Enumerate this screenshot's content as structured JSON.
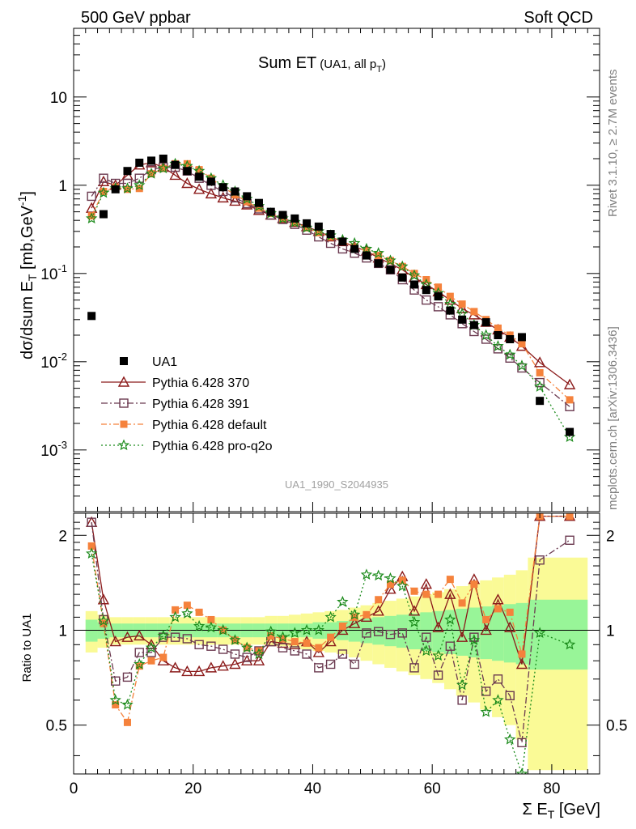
{
  "header": {
    "left": "500 GeV ppbar",
    "right": "Soft QCD"
  },
  "side": {
    "rivet": "Rivet 3.1.10, ≥ 2.7M events",
    "mcplots": "mcplots.cern.ch [arXiv:1306.3436]"
  },
  "chart_data": {
    "type": "scatter",
    "title_main": "Sum ET",
    "title_sub": "(UA1, all p",
    "title_sub_sub": "T",
    "title_sub_end": ")",
    "watermark": "UA1_1990_S2044935",
    "xlabel": "Σ E",
    "xlabel_sub": "T",
    "xlabel_unit": " [GeV]",
    "ylabel_main": "dσ/dsum E",
    "ylabel_sub": "T",
    "ylabel_unit": " [mb,GeV",
    "ylabel_sup": "-1",
    "ylabel_end": "]",
    "ratio_ylabel": "Ratio to UA1",
    "xlim": [
      0,
      88
    ],
    "ylim": [
      0.0002,
      60
    ],
    "yscale": "log",
    "ratio_ylim": [
      0.35,
      2.35
    ],
    "x_ticks": [
      "0",
      "20",
      "40",
      "60",
      "80"
    ],
    "y_ticks": [
      {
        "base": "10",
        "exp": "-3",
        "value": 0.001
      },
      {
        "base": "10",
        "exp": "-2",
        "value": 0.01
      },
      {
        "base": "10",
        "exp": "-1",
        "value": 0.1
      },
      {
        "base": "1",
        "exp": "",
        "value": 1
      },
      {
        "base": "10",
        "exp": "",
        "value": 10
      }
    ],
    "ratio_ticks": [
      {
        "label": "0.5",
        "value": 0.5
      },
      {
        "label": "1",
        "value": 1
      },
      {
        "label": "2",
        "value": 2
      }
    ],
    "legend_position": "bottom-left",
    "x": [
      3,
      5,
      7,
      9,
      11,
      13,
      15,
      17,
      19,
      21,
      23,
      25,
      27,
      29,
      31,
      33,
      35,
      37,
      39,
      41,
      43,
      45,
      47,
      49,
      51,
      53,
      55,
      57,
      59,
      61,
      63,
      65,
      67,
      69,
      71,
      73,
      75,
      78,
      83
    ],
    "data": {
      "name": "UA1",
      "values": [
        0.033,
        0.47,
        0.9,
        1.45,
        1.8,
        1.9,
        2.0,
        1.7,
        1.45,
        1.25,
        1.1,
        0.95,
        0.85,
        0.75,
        0.63,
        0.5,
        0.46,
        0.42,
        0.37,
        0.34,
        0.28,
        0.23,
        0.19,
        0.16,
        0.13,
        0.11,
        0.09,
        0.075,
        0.065,
        0.055,
        0.038,
        0.03,
        0.026,
        0.028,
        0.02,
        0.018,
        0.019,
        0.0036,
        0.0016
      ]
    },
    "series": [
      {
        "name": "Pythia 6.428 370",
        "color": "#8b1a1a",
        "marker": "triangle",
        "dash": "",
        "values": [
          0.55,
          1.1,
          1.0,
          1.3,
          1.7,
          1.8,
          1.6,
          1.3,
          1.05,
          0.9,
          0.8,
          0.72,
          0.66,
          0.6,
          0.52,
          0.46,
          0.42,
          0.38,
          0.34,
          0.3,
          0.26,
          0.23,
          0.2,
          0.18,
          0.15,
          0.13,
          0.11,
          0.09,
          0.075,
          0.062,
          0.05,
          0.04,
          0.034,
          0.028,
          0.023,
          0.019,
          0.015,
          0.0098,
          0.0055
        ],
        "ratio": [
          2.2,
          1.25,
          0.92,
          0.95,
          0.96,
          0.9,
          0.8,
          0.76,
          0.74,
          0.74,
          0.76,
          0.77,
          0.78,
          0.8,
          0.8,
          0.92,
          0.91,
          0.9,
          0.92,
          0.85,
          0.92,
          1.0,
          1.05,
          1.1,
          1.15,
          1.35,
          1.48,
          1.15,
          1.4,
          1.02,
          1.3,
          0.95,
          1.45,
          1.0,
          1.25,
          1.02,
          0.78,
          2.3,
          2.3
        ]
      },
      {
        "name": "Pythia 6.428 391",
        "color": "#6b3a50",
        "marker": "square-open",
        "dash": "8,3,2,3",
        "values": [
          0.75,
          1.2,
          1.05,
          1.05,
          1.2,
          1.5,
          1.6,
          1.6,
          1.45,
          1.2,
          1.0,
          0.85,
          0.72,
          0.62,
          0.54,
          0.46,
          0.41,
          0.36,
          0.31,
          0.26,
          0.22,
          0.19,
          0.17,
          0.15,
          0.13,
          0.11,
          0.085,
          0.065,
          0.05,
          0.042,
          0.034,
          0.027,
          0.022,
          0.018,
          0.014,
          0.011,
          0.0085,
          0.0058,
          0.0031
        ],
        "ratio": [
          2.2,
          1.08,
          0.69,
          0.71,
          0.85,
          0.85,
          0.95,
          0.95,
          0.94,
          0.9,
          0.89,
          0.87,
          0.84,
          0.82,
          0.86,
          0.92,
          0.88,
          0.86,
          0.84,
          0.76,
          0.78,
          0.84,
          0.78,
          0.98,
          0.99,
          0.97,
          0.98,
          0.76,
          0.95,
          0.72,
          0.89,
          0.6,
          0.95,
          0.64,
          0.7,
          0.62,
          0.44,
          1.67,
          1.93
        ]
      },
      {
        "name": "Pythia 6.428 default",
        "color": "#f5823c",
        "marker": "square-filled",
        "dash": "7,3,2,3",
        "values": [
          0.45,
          0.85,
          0.95,
          0.9,
          0.92,
          1.35,
          1.55,
          1.75,
          1.75,
          1.5,
          1.2,
          0.95,
          0.78,
          0.65,
          0.55,
          0.48,
          0.42,
          0.38,
          0.33,
          0.29,
          0.26,
          0.23,
          0.2,
          0.18,
          0.16,
          0.14,
          0.12,
          0.1,
          0.085,
          0.07,
          0.055,
          0.045,
          0.037,
          0.03,
          0.024,
          0.02,
          0.016,
          0.0075,
          0.0037
        ],
        "ratio": [
          1.85,
          1.05,
          0.58,
          0.51,
          0.77,
          0.8,
          0.82,
          1.16,
          1.2,
          1.14,
          1.08,
          1.0,
          0.93,
          0.88,
          0.86,
          0.96,
          0.94,
          0.92,
          0.91,
          0.88,
          0.95,
          1.03,
          1.1,
          1.12,
          1.25,
          1.4,
          1.44,
          1.33,
          1.3,
          1.3,
          1.45,
          1.22,
          1.4,
          1.08,
          1.17,
          1.14,
          0.84,
          2.3,
          2.3
        ]
      },
      {
        "name": "Pythia 6.428 pro-q2o",
        "color": "#1a8a1a",
        "marker": "star",
        "dash": "2,3",
        "values": [
          0.42,
          0.82,
          0.92,
          0.92,
          1.0,
          1.35,
          1.55,
          1.75,
          1.65,
          1.45,
          1.2,
          1.0,
          0.85,
          0.7,
          0.58,
          0.48,
          0.42,
          0.38,
          0.33,
          0.3,
          0.27,
          0.24,
          0.22,
          0.19,
          0.17,
          0.14,
          0.12,
          0.095,
          0.075,
          0.06,
          0.045,
          0.035,
          0.026,
          0.02,
          0.015,
          0.012,
          0.009,
          0.0052,
          0.0014
        ],
        "ratio": [
          1.75,
          1.07,
          0.6,
          0.58,
          0.78,
          0.88,
          0.96,
          1.1,
          1.13,
          1.03,
          1.02,
          1.0,
          0.93,
          0.88,
          0.84,
          0.99,
          0.95,
          0.98,
          1.0,
          1.0,
          1.1,
          1.23,
          1.12,
          1.5,
          1.49,
          1.46,
          1.38,
          1.06,
          0.86,
          0.83,
          1.08,
          0.67,
          0.93,
          0.55,
          0.6,
          0.45,
          0.35,
          0.98,
          0.9
        ]
      }
    ],
    "uncertainty_bands": {
      "inner_color": "#98f598",
      "outer_color": "#fafa96",
      "edges": [
        2,
        4,
        6,
        8,
        10,
        12,
        14,
        16,
        18,
        20,
        22,
        24,
        26,
        28,
        30,
        32,
        34,
        36,
        38,
        40,
        42,
        44,
        46,
        48,
        50,
        52,
        54,
        56,
        58,
        60,
        62,
        64,
        66,
        68,
        70,
        72,
        74,
        76,
        86
      ],
      "inner": [
        0.08,
        0.06,
        0.05,
        0.05,
        0.05,
        0.05,
        0.05,
        0.05,
        0.05,
        0.05,
        0.05,
        0.05,
        0.05,
        0.05,
        0.05,
        0.05,
        0.05,
        0.05,
        0.05,
        0.06,
        0.06,
        0.07,
        0.08,
        0.09,
        0.1,
        0.11,
        0.12,
        0.13,
        0.14,
        0.15,
        0.16,
        0.17,
        0.18,
        0.19,
        0.2,
        0.21,
        0.22,
        0.25
      ],
      "outer": [
        0.15,
        0.12,
        0.1,
        0.1,
        0.1,
        0.1,
        0.1,
        0.1,
        0.1,
        0.1,
        0.1,
        0.1,
        0.1,
        0.1,
        0.1,
        0.11,
        0.11,
        0.12,
        0.13,
        0.14,
        0.15,
        0.16,
        0.18,
        0.2,
        0.22,
        0.24,
        0.26,
        0.28,
        0.3,
        0.32,
        0.35,
        0.38,
        0.41,
        0.44,
        0.47,
        0.5,
        0.55,
        0.7
      ]
    }
  }
}
